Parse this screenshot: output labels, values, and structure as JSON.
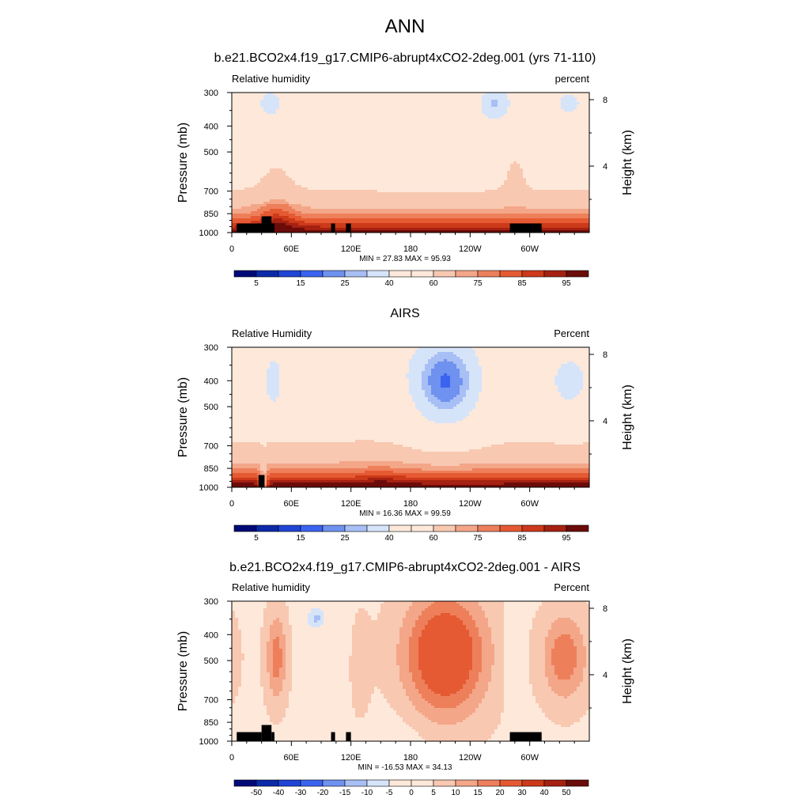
{
  "main_title": "ANN",
  "axis": {
    "pressure_label": "Pressure (mb)",
    "height_label": "Height (km)",
    "pressure_ticks": [
      "300",
      "400",
      "500",
      "700",
      "850",
      "1000"
    ],
    "height_ticks": [
      "8",
      "4"
    ],
    "lon_ticks": [
      "0",
      "60E",
      "120E",
      "180",
      "120W",
      "60W"
    ]
  },
  "colors": {
    "abs_palette": [
      "#000a77",
      "#0a2aa8",
      "#1f45d6",
      "#3a64f0",
      "#6f91ef",
      "#a7bff4",
      "#d6e4fa",
      "#fde8da",
      "#f8c8b1",
      "#f4a688",
      "#ee7f5b",
      "#e55a32",
      "#cc3a1a",
      "#a52111",
      "#6b0c0a"
    ],
    "diff_palette": [
      "#000a77",
      "#0a2aa8",
      "#1f45d6",
      "#3a64f0",
      "#6f91ef",
      "#a7bff4",
      "#d6e4fa",
      "#fde8da",
      "#f8c8b1",
      "#f4a688",
      "#ee7f5b",
      "#e55a32",
      "#cc3a1a",
      "#a52111",
      "#6b0c0a"
    ]
  },
  "chart_data": [
    {
      "type": "heatmap",
      "title": "b.e21.BCO2x4.f19_g17.CMIP6-abrupt4xCO2-2deg.001 (yrs 71-110)",
      "left_label": "Relative humidity",
      "right_label": "percent",
      "stats": "MIN =  27.83  MAX =  95.93",
      "min": 27.83,
      "max": 95.93,
      "colorbar_labels": [
        "5",
        "15",
        "25",
        "40",
        "60",
        "75",
        "85",
        "95"
      ],
      "colorbar_levels": [
        0,
        5,
        10,
        15,
        20,
        25,
        30,
        40,
        50,
        60,
        70,
        75,
        80,
        85,
        90,
        95,
        100
      ],
      "colorbar_label_levels": [
        5,
        15,
        25,
        40,
        60,
        75,
        85,
        95
      ],
      "ylim_mb": [
        1000,
        300
      ],
      "xlim_deg": [
        0,
        360
      ]
    },
    {
      "type": "heatmap",
      "title": "AIRS",
      "left_label": "Relative Humidity",
      "right_label": "Percent",
      "stats": "MIN =  16.36  MAX =  99.59",
      "min": 16.36,
      "max": 99.59,
      "colorbar_labels": [
        "5",
        "15",
        "25",
        "40",
        "60",
        "75",
        "85",
        "95"
      ],
      "colorbar_levels": [
        0,
        5,
        10,
        15,
        20,
        25,
        30,
        40,
        50,
        60,
        70,
        75,
        80,
        85,
        90,
        95,
        100
      ],
      "colorbar_label_levels": [
        5,
        15,
        25,
        40,
        60,
        75,
        85,
        95
      ],
      "ylim_mb": [
        1000,
        300
      ],
      "xlim_deg": [
        0,
        360
      ]
    },
    {
      "type": "heatmap",
      "title": "b.e21.BCO2x4.f19_g17.CMIP6-abrupt4xCO2-2deg.001 - AIRS",
      "left_label": "Relative humidity",
      "right_label": "Percent",
      "stats": "MIN = -16.53  MAX =  34.13",
      "min": -16.53,
      "max": 34.13,
      "colorbar_labels": [
        "-50",
        "-40",
        "-30",
        "-20",
        "-15",
        "-10",
        "-5",
        "0",
        "5",
        "10",
        "15",
        "20",
        "30",
        "40",
        "50"
      ],
      "colorbar_levels": [
        -60,
        -50,
        -40,
        -30,
        -20,
        -15,
        -10,
        -5,
        0,
        5,
        10,
        15,
        20,
        30,
        40,
        50,
        60
      ],
      "colorbar_label_levels": [
        -50,
        -40,
        -30,
        -20,
        -15,
        -10,
        -5,
        0,
        5,
        10,
        15,
        20,
        30,
        40,
        50
      ],
      "ylim_mb": [
        1000,
        300
      ],
      "xlim_deg": [
        0,
        360
      ]
    }
  ]
}
